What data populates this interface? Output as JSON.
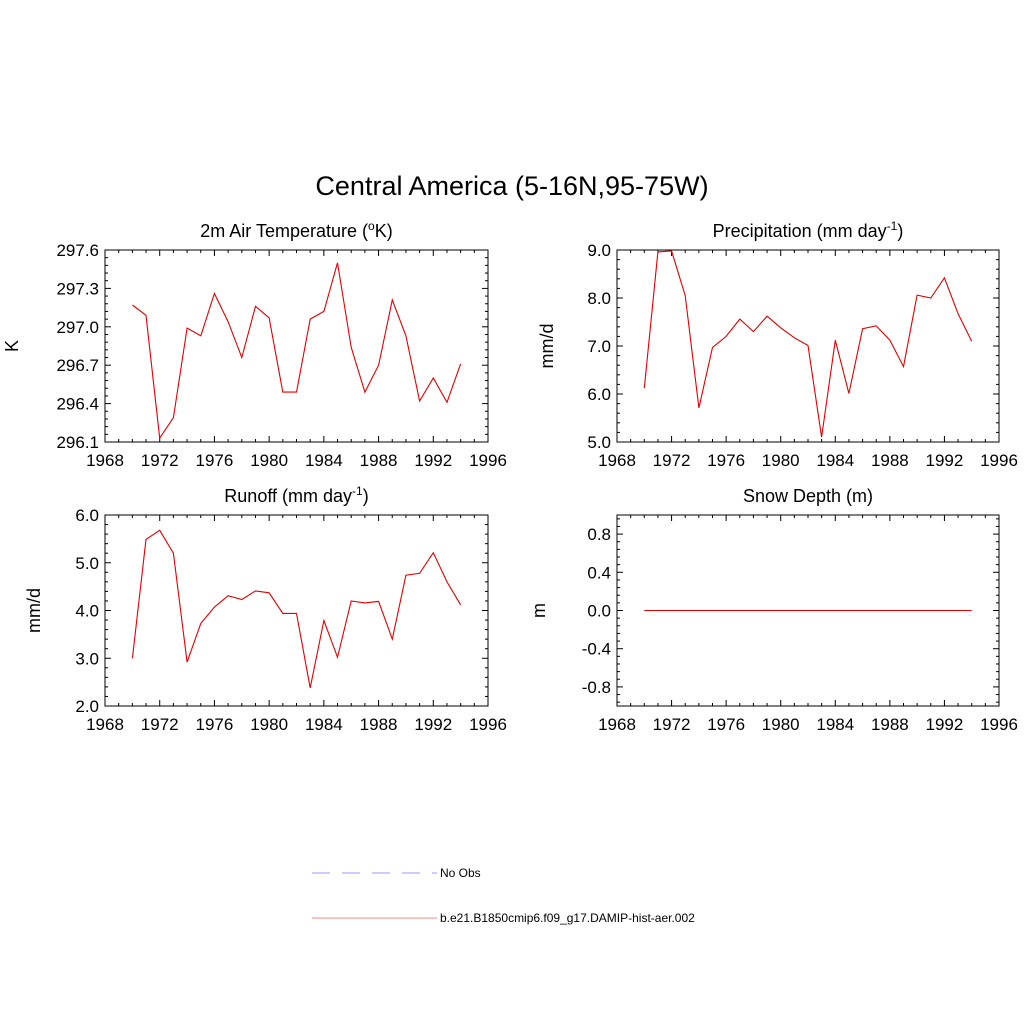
{
  "figure": {
    "title": "Central America (5-16N,95-75W)"
  },
  "colors": {
    "model_line": "#e00000",
    "obs_line": "#9999ff"
  },
  "legend": {
    "items": [
      {
        "label": "No Obs",
        "style": "dashed",
        "color": "#9999ff"
      },
      {
        "label": "b.e21.B1850cmip6.f09_g17.DAMIP-hist-aer.002",
        "style": "solid",
        "color": "#ff8080"
      }
    ]
  },
  "chart_data": [
    {
      "type": "line",
      "title": "2m Air Temperature (",
      "title_sup": "o",
      "title_after": "K)",
      "ylabel": "K",
      "xlim": [
        1968,
        1996
      ],
      "ylim": [
        296.1,
        297.6
      ],
      "x_ticks": [
        1968,
        1972,
        1976,
        1980,
        1984,
        1988,
        1992,
        1996
      ],
      "y_ticks": [
        "296.1",
        "296.4",
        "296.7",
        "297.0",
        "297.3",
        "297.6"
      ],
      "series": [
        {
          "x": [
            1970,
            1971,
            1972,
            1973,
            1974,
            1975,
            1976,
            1977,
            1978,
            1979,
            1980,
            1981,
            1982,
            1983,
            1984,
            1985,
            1986,
            1987,
            1988,
            1989,
            1990,
            1991,
            1992,
            1993,
            1994
          ],
          "values": [
            297.17,
            297.09,
            296.13,
            296.29,
            296.99,
            296.93,
            297.26,
            297.04,
            296.76,
            297.16,
            297.07,
            296.49,
            296.49,
            297.06,
            297.12,
            297.5,
            296.84,
            296.49,
            296.7,
            297.21,
            296.93,
            296.42,
            296.6,
            296.41,
            296.71
          ]
        }
      ]
    },
    {
      "type": "line",
      "title": "Precipitation (mm day",
      "title_sup": "-1",
      "title_after": ")",
      "ylabel": "mm/d",
      "xlim": [
        1968,
        1996
      ],
      "ylim": [
        5.0,
        9.0
      ],
      "x_ticks": [
        1968,
        1972,
        1976,
        1980,
        1984,
        1988,
        1992,
        1996
      ],
      "y_ticks": [
        "5.0",
        "6.0",
        "7.0",
        "8.0",
        "9.0"
      ],
      "series": [
        {
          "x": [
            1970,
            1971,
            1972,
            1973,
            1974,
            1975,
            1976,
            1977,
            1978,
            1979,
            1980,
            1981,
            1982,
            1983,
            1984,
            1985,
            1986,
            1987,
            1988,
            1989,
            1990,
            1991,
            1992,
            1993,
            1994
          ],
          "values": [
            6.12,
            8.96,
            8.98,
            8.05,
            5.71,
            6.97,
            7.2,
            7.56,
            7.3,
            7.62,
            7.38,
            7.17,
            7.01,
            5.1,
            7.12,
            6.01,
            7.36,
            7.42,
            7.12,
            6.57,
            8.06,
            8.0,
            8.42,
            7.67,
            7.1
          ]
        }
      ]
    },
    {
      "type": "line",
      "title": "Runoff (mm day",
      "title_sup": "-1",
      "title_after": ")",
      "ylabel": "mm/d",
      "xlim": [
        1968,
        1996
      ],
      "ylim": [
        2.0,
        6.0
      ],
      "x_ticks": [
        1968,
        1972,
        1976,
        1980,
        1984,
        1988,
        1992,
        1996
      ],
      "y_ticks": [
        "2.0",
        "3.0",
        "4.0",
        "5.0",
        "6.0"
      ],
      "series": [
        {
          "x": [
            1970,
            1971,
            1972,
            1973,
            1974,
            1975,
            1976,
            1977,
            1978,
            1979,
            1980,
            1981,
            1982,
            1983,
            1984,
            1985,
            1986,
            1987,
            1988,
            1989,
            1990,
            1991,
            1992,
            1993,
            1994
          ],
          "values": [
            3.0,
            5.49,
            5.68,
            5.2,
            2.92,
            3.73,
            4.07,
            4.31,
            4.23,
            4.41,
            4.37,
            3.94,
            3.94,
            2.38,
            3.79,
            3.02,
            4.2,
            4.16,
            4.19,
            3.4,
            4.74,
            4.78,
            5.21,
            4.6,
            4.12
          ]
        }
      ]
    },
    {
      "type": "line",
      "title": "Snow Depth (m)",
      "title_sup": "",
      "title_after": "",
      "ylabel": "m",
      "xlim": [
        1968,
        1996
      ],
      "ylim": [
        -1.0,
        1.0
      ],
      "x_ticks": [
        1968,
        1972,
        1976,
        1980,
        1984,
        1988,
        1992,
        1996
      ],
      "y_ticks": [
        "-0.8",
        "-0.4",
        "0.0",
        "0.4",
        "0.8"
      ],
      "y_tick_values": [
        -0.8,
        -0.4,
        0.0,
        0.4,
        0.8
      ],
      "series": [
        {
          "x": [
            1970,
            1994
          ],
          "values": [
            0.0,
            0.0
          ]
        }
      ]
    }
  ]
}
